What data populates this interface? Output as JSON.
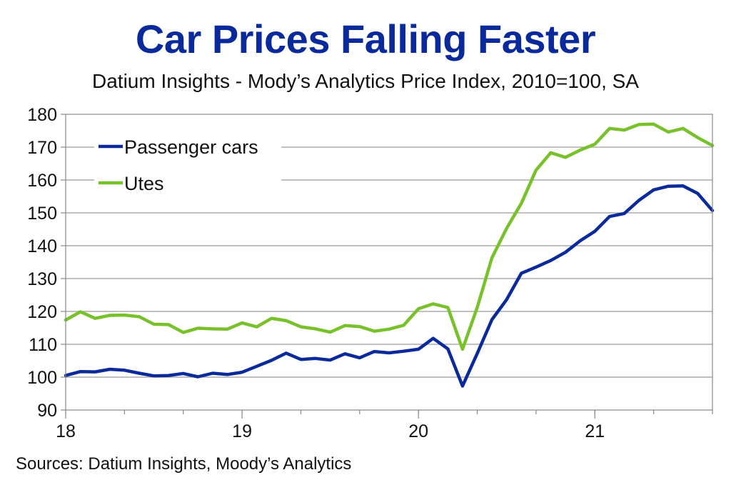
{
  "header": {
    "title": "Car Prices Falling Faster",
    "subtitle": "Datium Insights - Mody’s Analytics Price Index, 2010=100, SA"
  },
  "footer": {
    "source": "Sources: Datium Insights, Moody’s Analytics"
  },
  "chart_data": {
    "type": "line",
    "title": "Car Prices Falling Faster",
    "subtitle": "Datium Insights - Mody’s Analytics Price Index, 2010=100, SA",
    "xlabel": "",
    "ylabel": "",
    "ylim": [
      90,
      180
    ],
    "xlim": [
      18,
      21.6667
    ],
    "yticks": [
      "90",
      "100",
      "110",
      "120",
      "130",
      "140",
      "150",
      "160",
      "170",
      "180"
    ],
    "xticks": [
      {
        "value": 18,
        "label": "18"
      },
      {
        "value": 19,
        "label": "19"
      },
      {
        "value": 20,
        "label": "20"
      },
      {
        "value": 21,
        "label": "21"
      }
    ],
    "grid": "horizontal",
    "legend_position": "top-left",
    "colors": {
      "Passenger cars": "#0a2a9c",
      "Utes": "#78c12b"
    },
    "series": [
      {
        "name": "Passenger cars",
        "values": [
          100.5,
          101.7,
          101.6,
          102.4,
          102.1,
          101.2,
          100.4,
          100.5,
          101.1,
          100.1,
          101.2,
          100.8,
          101.5,
          103.3,
          105.1,
          107.3,
          105.4,
          105.7,
          105.2,
          107.1,
          105.9,
          107.8,
          107.4,
          107.9,
          108.5,
          111.8,
          108.6,
          97.3,
          107.2,
          117.5,
          123.6,
          131.6,
          133.5,
          135.5,
          138.0,
          141.5,
          144.4,
          148.9,
          149.8,
          153.8,
          157.0,
          158.1,
          158.2,
          155.9,
          150.7
        ]
      },
      {
        "name": "Utes",
        "values": [
          117.4,
          119.9,
          117.9,
          118.8,
          118.9,
          118.4,
          116.1,
          116.0,
          113.6,
          114.9,
          114.7,
          114.6,
          116.5,
          115.3,
          117.9,
          117.2,
          115.3,
          114.7,
          113.7,
          115.7,
          115.4,
          114.0,
          114.6,
          115.8,
          120.8,
          122.3,
          121.2,
          108.5,
          121.2,
          136.3,
          145.3,
          152.9,
          163.0,
          168.3,
          166.9,
          169.1,
          170.9,
          175.7,
          175.2,
          176.9,
          177.0,
          174.6,
          175.7,
          172.9,
          170.5
        ]
      }
    ]
  }
}
